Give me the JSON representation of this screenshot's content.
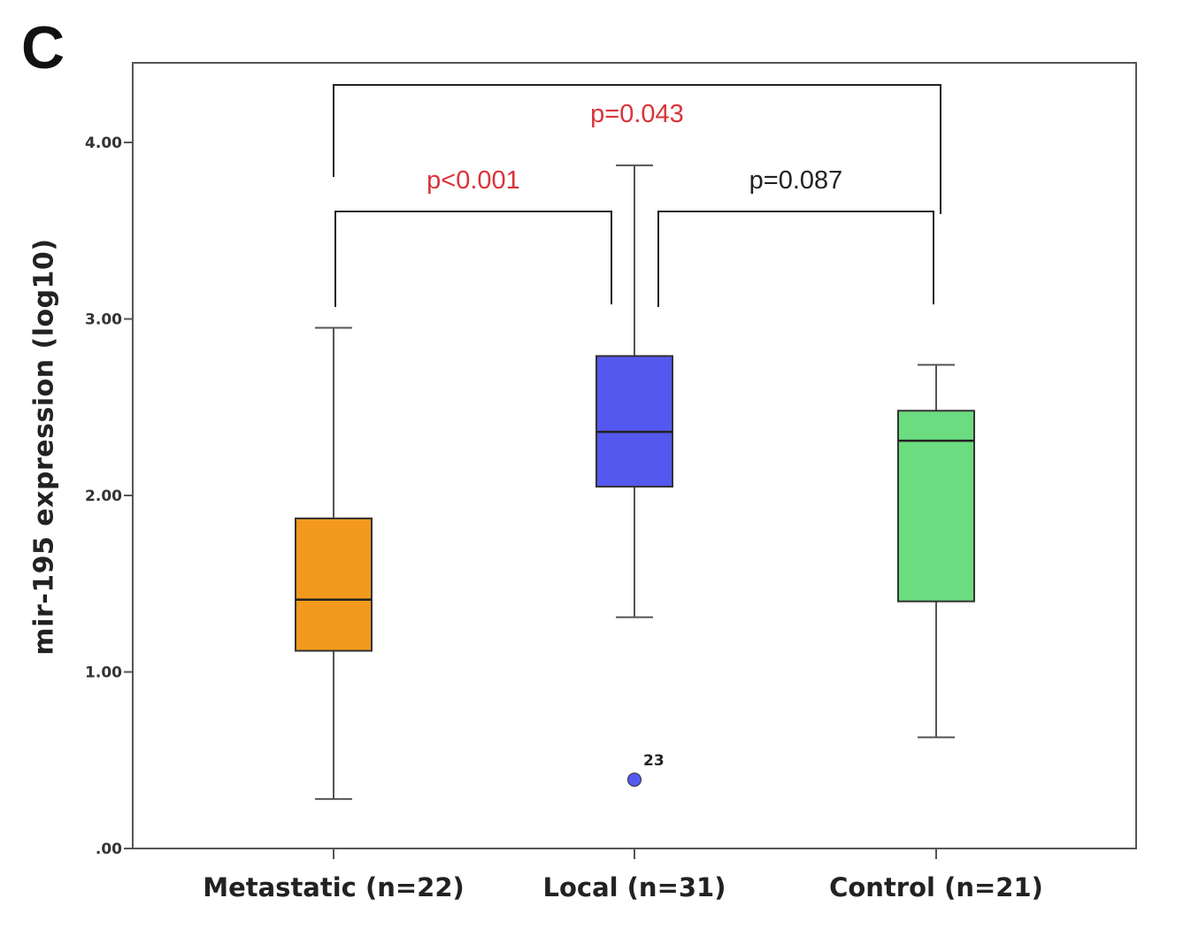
{
  "panel_label": "C",
  "chart_data": {
    "type": "boxplot",
    "ylabel": "mir-195 expression (log10)",
    "ylim": [
      0,
      4.5
    ],
    "y_ticks": [
      {
        "value": 0,
        "label": ".00"
      },
      {
        "value": 1,
        "label": "1.00"
      },
      {
        "value": 2,
        "label": "2.00"
      },
      {
        "value": 3,
        "label": "3.00"
      },
      {
        "value": 4,
        "label": "4.00"
      }
    ],
    "groups": [
      {
        "label": "Metastatic (n=22)",
        "color": "#f39a1e",
        "whisker_low": 0.28,
        "q1": 1.12,
        "median": 1.41,
        "q3": 1.87,
        "whisker_high": 2.95,
        "outliers": []
      },
      {
        "label": "Local (n=31)",
        "color": "#5558ee",
        "whisker_low": 1.31,
        "q1": 2.05,
        "median": 2.36,
        "q3": 2.79,
        "whisker_high": 3.87,
        "outliers": [
          {
            "value": 0.39,
            "label": "23"
          }
        ]
      },
      {
        "label": "Control (n=21)",
        "color": "#6bdc80",
        "whisker_low": 0.63,
        "q1": 1.4,
        "median": 2.31,
        "q3": 2.48,
        "whisker_high": 2.74,
        "outliers": []
      }
    ],
    "comparisons": [
      {
        "from": 0,
        "to": 1,
        "text": "p<0.001",
        "color": "#d9343a",
        "level": "low"
      },
      {
        "from": 1,
        "to": 2,
        "text": "p=0.087",
        "color": "#222222",
        "level": "low"
      },
      {
        "from": 0,
        "to": 2,
        "text": "p=0.043",
        "color": "#d9343a",
        "level": "high"
      }
    ]
  }
}
